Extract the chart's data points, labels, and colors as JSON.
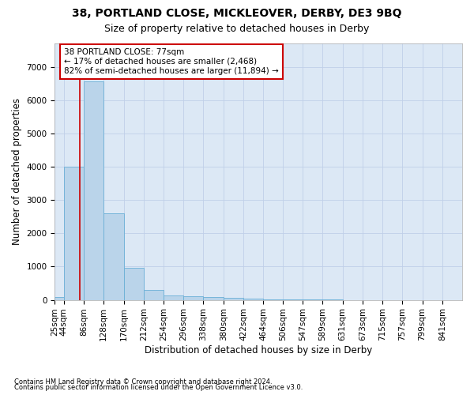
{
  "title_line1": "38, PORTLAND CLOSE, MICKLEOVER, DERBY, DE3 9BQ",
  "title_line2": "Size of property relative to detached houses in Derby",
  "xlabel": "Distribution of detached houses by size in Derby",
  "ylabel": "Number of detached properties",
  "footnote1": "Contains HM Land Registry data © Crown copyright and database right 2024.",
  "footnote2": "Contains public sector information licensed under the Open Government Licence v3.0.",
  "annotation_line1": "38 PORTLAND CLOSE: 77sqm",
  "annotation_line2": "← 17% of detached houses are smaller (2,468)",
  "annotation_line3": "82% of semi-detached houses are larger (11,894) →",
  "property_size": 77,
  "bin_centers": [
    25,
    44,
    86,
    128,
    170,
    212,
    254,
    296,
    338,
    380,
    422,
    464,
    506,
    547,
    589,
    631,
    673,
    715,
    757,
    799,
    841
  ],
  "bin_labels": [
    "25sqm",
    "44sqm",
    "86sqm",
    "128sqm",
    "170sqm",
    "212sqm",
    "254sqm",
    "296sqm",
    "338sqm",
    "380sqm",
    "422sqm",
    "464sqm",
    "506sqm",
    "547sqm",
    "589sqm",
    "631sqm",
    "673sqm",
    "715sqm",
    "757sqm",
    "799sqm",
    "841sqm"
  ],
  "bar_heights": [
    80,
    4000,
    6550,
    2600,
    960,
    300,
    130,
    110,
    90,
    70,
    30,
    15,
    8,
    4,
    3,
    2,
    1,
    1,
    0,
    0,
    0
  ],
  "bar_color": "#bad4ea",
  "bar_edge_color": "#6aafd6",
  "grid_color": "#c0cfe8",
  "bg_color": "#dce8f5",
  "red_line_color": "#cc0000",
  "annotation_box_color": "#cc0000",
  "ylim": [
    0,
    7700
  ],
  "yticks": [
    0,
    1000,
    2000,
    3000,
    4000,
    5000,
    6000,
    7000
  ],
  "title_fontsize": 10,
  "subtitle_fontsize": 9,
  "axis_label_fontsize": 8.5,
  "tick_fontsize": 7.5,
  "annotation_fontsize": 7.5
}
